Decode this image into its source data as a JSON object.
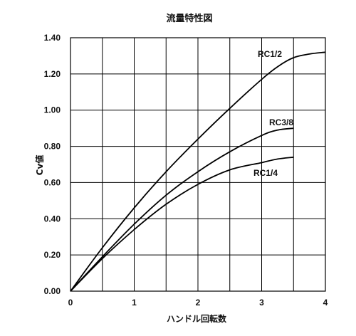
{
  "chart_data": {
    "type": "line",
    "title": "流量特性図",
    "xlabel": "ハンドル回転数",
    "ylabel": "Cv値",
    "xlim": [
      0,
      4
    ],
    "ylim": [
      0,
      1.4
    ],
    "x_ticks": [
      0,
      0.5,
      1,
      1.5,
      2,
      2.5,
      3,
      3.5,
      4
    ],
    "x_tick_labels": [
      "0",
      "",
      "1",
      "",
      "2",
      "",
      "3",
      "",
      "4"
    ],
    "y_ticks": [
      0,
      0.2,
      0.4,
      0.6,
      0.8,
      1.0,
      1.2,
      1.4
    ],
    "y_tick_labels": [
      "0.00",
      "0.20",
      "0.40",
      "0.60",
      "0.80",
      "1.00",
      "1.20",
      "1.40"
    ],
    "grid": true,
    "series": [
      {
        "name": "RC1/2",
        "x": [
          0,
          0.5,
          1,
          1.5,
          2,
          2.5,
          3,
          3.25,
          3.5,
          3.75,
          4
        ],
        "y": [
          0,
          0.24,
          0.46,
          0.66,
          0.84,
          1.01,
          1.17,
          1.24,
          1.29,
          1.31,
          1.32
        ]
      },
      {
        "name": "RC3/8",
        "x": [
          0,
          0.5,
          1,
          1.5,
          2,
          2.5,
          3,
          3.25,
          3.5
        ],
        "y": [
          0,
          0.19,
          0.37,
          0.53,
          0.66,
          0.77,
          0.86,
          0.89,
          0.9
        ]
      },
      {
        "name": "RC1/4",
        "x": [
          0,
          0.5,
          1,
          1.5,
          2,
          2.5,
          3,
          3.25,
          3.5
        ],
        "y": [
          0,
          0.18,
          0.34,
          0.48,
          0.59,
          0.67,
          0.71,
          0.73,
          0.74
        ]
      }
    ]
  }
}
